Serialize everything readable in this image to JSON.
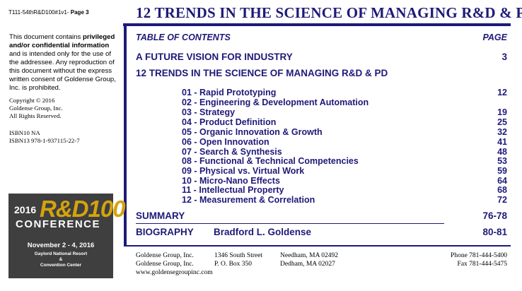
{
  "header": {
    "doc_ref": "T111-54thR&D100#1v1-",
    "page_label": "Page 3",
    "title": "12 TRENDS IN THE SCIENCE OF MANAGING R&D & PD"
  },
  "sidebar": {
    "notice_pre": "This document contains ",
    "notice_bold": "privileged and/or confidential information",
    "notice_post": " and is intended only for the use of the addressee. Any reproduction of this document without the express written consent of Goldense Group, Inc. is prohibited.",
    "copyright_lines": [
      "Copyright © 2016",
      "Goldense Group, Inc.",
      "All Rights Reserved."
    ],
    "isbn_lines": [
      "ISBN10 NA",
      "ISBN13 978-1-937115-22-7"
    ]
  },
  "conference": {
    "year": "2016",
    "brand": "R&D100",
    "word": "CONFERENCE",
    "dates": "November 2 - 4, 2016",
    "venue_lines": [
      "Gaylord National Resort",
      "&",
      "Convention Center"
    ]
  },
  "toc": {
    "heading": "TABLE OF CONTENTS",
    "page_heading": "PAGE",
    "future_vision": {
      "label": "A FUTURE VISION FOR INDUSTRY",
      "page": "3"
    },
    "trends_title": "12 TRENDS IN THE SCIENCE OF MANAGING R&D & PD",
    "trends": [
      {
        "label": "01 - Rapid Prototyping",
        "page": "12"
      },
      {
        "label": "02 - Engineering & Development Automation",
        "page": ""
      },
      {
        "label": "03 - Strategy",
        "page": "19"
      },
      {
        "label": "04 - Product Definition",
        "page": "25"
      },
      {
        "label": "05 - Organic Innovation & Growth",
        "page": "32"
      },
      {
        "label": "06 - Open Innovation",
        "page": "41"
      },
      {
        "label": "07 - Search & Synthesis",
        "page": "48"
      },
      {
        "label": "08 - Functional & Technical Competencies",
        "page": "53"
      },
      {
        "label": "09 - Physical vs. Virtual Work",
        "page": "59"
      },
      {
        "label": "10 - Micro-Nano Effects",
        "page": "64"
      },
      {
        "label": "11 - Intellectual Property",
        "page": "68"
      },
      {
        "label": "12 - Measurement & Correlation",
        "page": "72"
      }
    ],
    "summary": {
      "label": "SUMMARY",
      "page": "76-78"
    },
    "biography": {
      "label": "BIOGRAPHY",
      "author": "Bradford L. Goldense",
      "page": "80-81"
    }
  },
  "footer": {
    "company_lines": [
      "Goldense Group, Inc.",
      "Goldense Group, Inc."
    ],
    "website": "www.goldensegroupinc.com",
    "address_lines": [
      "1346 South Street",
      "P. O. Box 350"
    ],
    "city_lines": [
      "Needham, MA  02492",
      "Dedham, MA  02027"
    ],
    "phone": "Phone 781-444-5400",
    "fax": "Fax 781-444-5475"
  },
  "colors": {
    "accent_navy": "#1e1a78",
    "logo_gold": "#d4a30f",
    "logo_bg": "#3f3f3f"
  }
}
